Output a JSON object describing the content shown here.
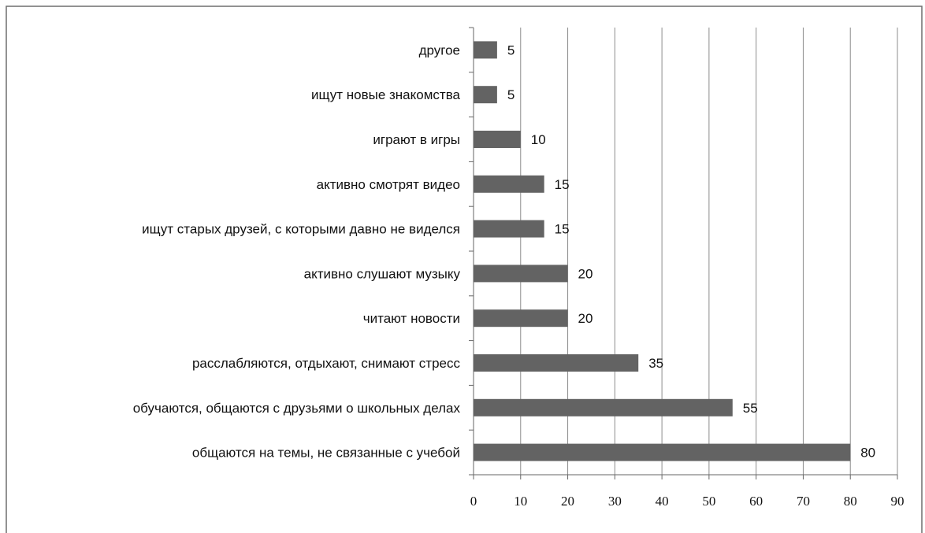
{
  "chart_data": {
    "type": "bar",
    "orientation": "horizontal",
    "title": "",
    "xlabel": "",
    "ylabel": "",
    "categories": [
      "общаются  на темы, не связанные с учебой",
      "обучаются, общаются с друзьями о школьных делах",
      "расслабляются, отдыхают, снимают стресс",
      "читают новости",
      "активно слушают музыку",
      "ищут старых друзей, с которыми давно не виделся",
      "активно смотрят видео",
      "играют в игры",
      "ищут новые знакомства",
      "другое"
    ],
    "values": [
      80,
      55,
      35,
      20,
      20,
      15,
      15,
      10,
      5,
      5
    ],
    "data_labels": [
      "80",
      "55",
      "35",
      "20",
      "20",
      "15",
      "15",
      "10",
      "5",
      "5"
    ],
    "xlim": [
      0,
      90
    ],
    "xticks": [
      0,
      10,
      20,
      30,
      40,
      50,
      60,
      70,
      80,
      90
    ],
    "grid": "vertical",
    "legend": "none",
    "bar_color": "#636363",
    "grid_color": "#8c8c8c",
    "border_color": "#6e6e6e"
  }
}
